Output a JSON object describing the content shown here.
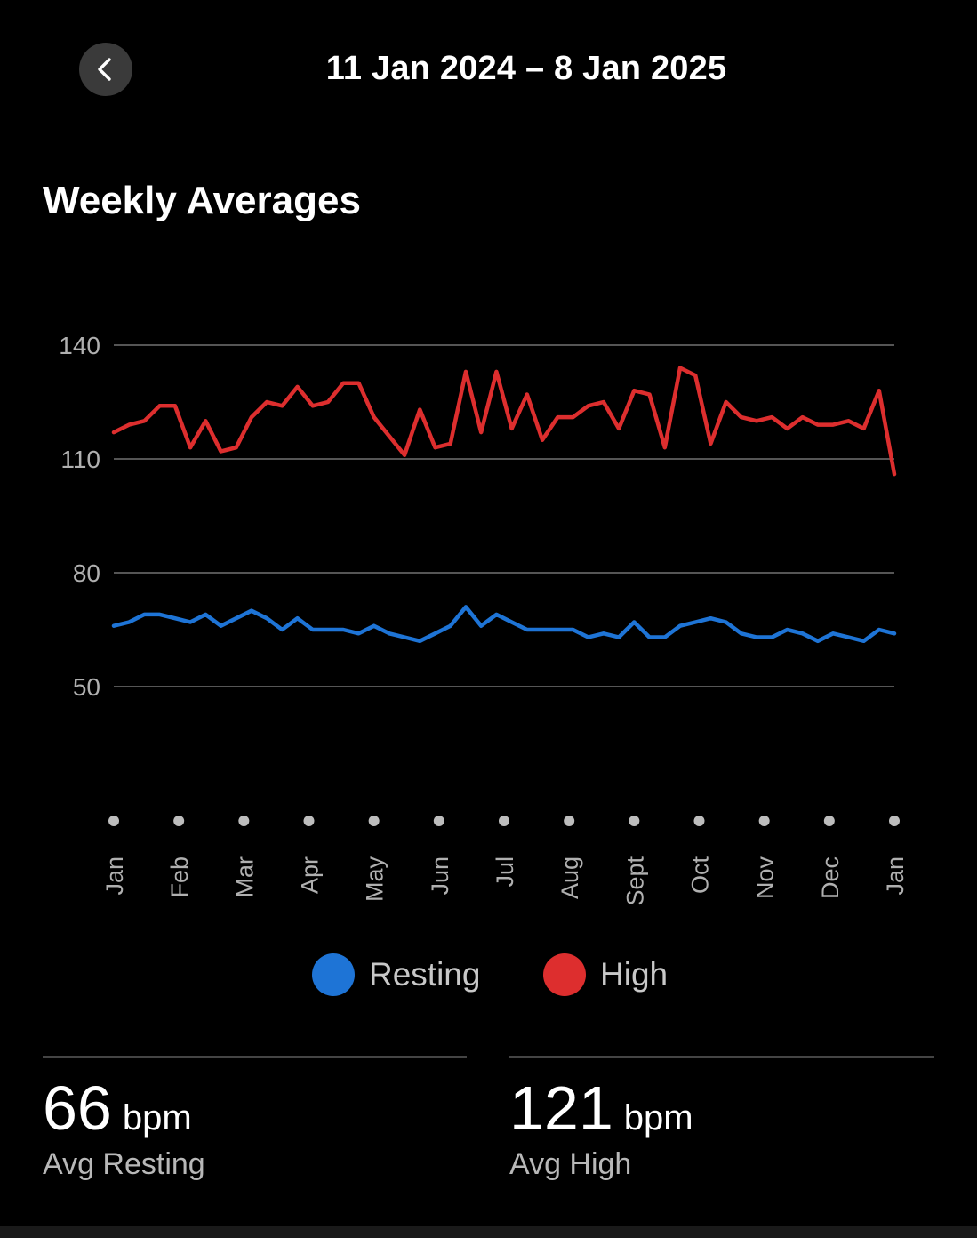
{
  "header": {
    "title": "11 Jan 2024 – 8 Jan 2025",
    "back_icon": "chevron-left-icon"
  },
  "section_title": "Weekly Averages",
  "colors": {
    "background": "#000000",
    "resting": "#1e74d6",
    "high": "#dd2e2e",
    "grid": "#555555"
  },
  "chart_data": {
    "type": "line",
    "ylim": [
      50,
      140
    ],
    "yticks": [
      140,
      110,
      80,
      50
    ],
    "grid": true,
    "month_labels": [
      "Jan",
      "Feb",
      "Mar",
      "Apr",
      "May",
      "Jun",
      "Jul",
      "Aug",
      "Sept",
      "Oct",
      "Nov",
      "Dec",
      "Jan"
    ],
    "legend_position": "bottom",
    "series": [
      {
        "name": "High",
        "color": "#dd2e2e",
        "values": [
          117,
          119,
          120,
          124,
          124,
          113,
          120,
          112,
          113,
          121,
          125,
          124,
          129,
          124,
          125,
          130,
          130,
          121,
          116,
          111,
          123,
          113,
          114,
          133,
          117,
          133,
          118,
          127,
          115,
          121,
          121,
          124,
          125,
          118,
          128,
          127,
          113,
          134,
          132,
          114,
          125,
          121,
          120,
          121,
          118,
          121,
          119,
          119,
          120,
          118,
          128,
          106
        ]
      },
      {
        "name": "Resting",
        "color": "#1e74d6",
        "values": [
          66,
          67,
          69,
          69,
          68,
          67,
          69,
          66,
          68,
          70,
          68,
          65,
          68,
          65,
          65,
          65,
          64,
          66,
          64,
          63,
          62,
          64,
          66,
          71,
          66,
          69,
          67,
          65,
          65,
          65,
          65,
          63,
          64,
          63,
          67,
          63,
          63,
          66,
          67,
          68,
          67,
          64,
          63,
          63,
          65,
          64,
          62,
          64,
          63,
          62,
          65,
          64
        ]
      }
    ]
  },
  "legend": {
    "resting_label": "Resting",
    "high_label": "High"
  },
  "stats": {
    "resting": {
      "value": "66",
      "unit": "bpm",
      "caption": "Avg Resting"
    },
    "high": {
      "value": "121",
      "unit": "bpm",
      "caption": "Avg High"
    }
  }
}
